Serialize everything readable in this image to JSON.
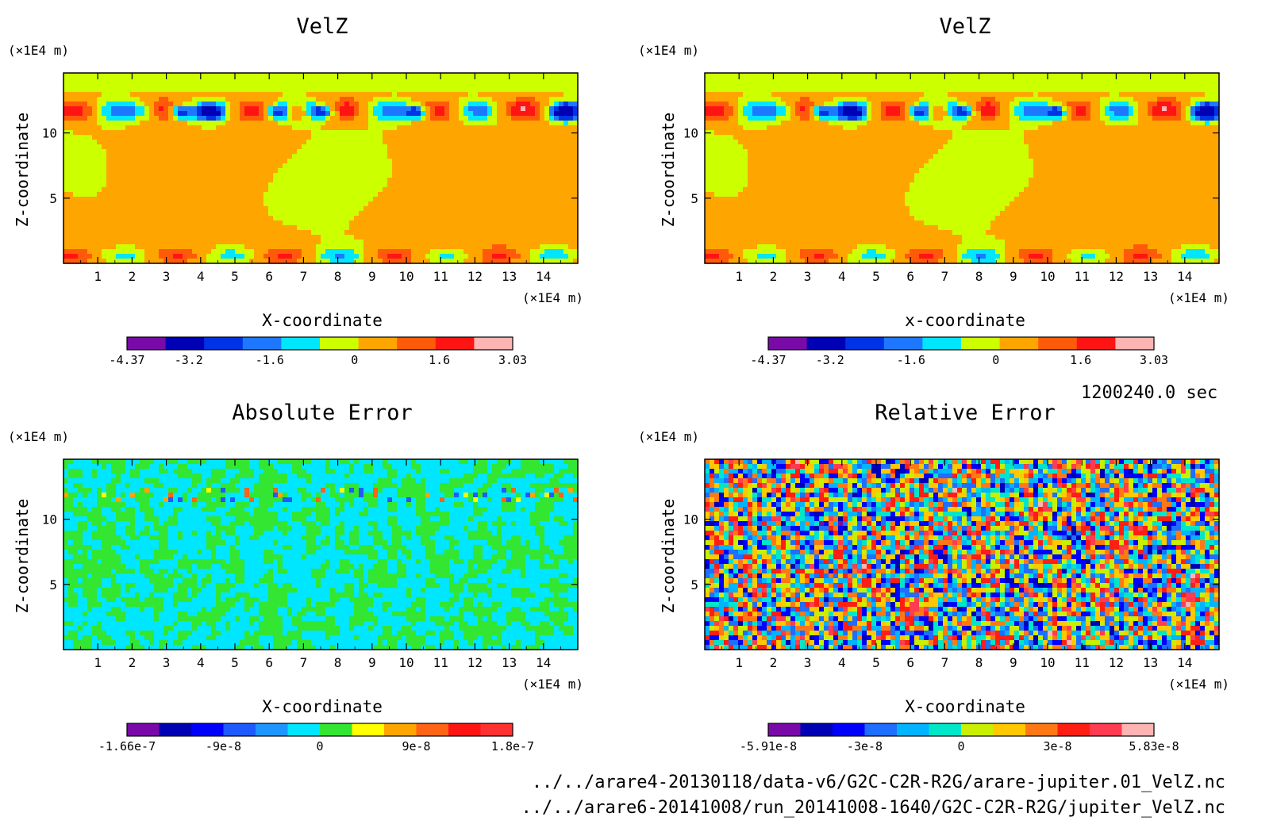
{
  "chart_data": [
    {
      "type": "heatmap",
      "title": "VelZ",
      "xlabel": "X-coordinate",
      "ylabel": "Z-coordinate",
      "x_unit": "(×1E4 m)",
      "y_unit": "(×1E4 m)",
      "xlim": [
        0,
        15
      ],
      "ylim": [
        0,
        14.6
      ],
      "x_ticks": [
        "1",
        "2",
        "3",
        "4",
        "5",
        "6",
        "7",
        "8",
        "9",
        "10",
        "11",
        "12",
        "13",
        "14"
      ],
      "y_ticks": [
        "5",
        "10"
      ],
      "colorbar": {
        "tick_labels": [
          "-4.37",
          "-3.2",
          "-1.6",
          "0",
          "1.6",
          "3.03"
        ],
        "colors": [
          "#7a0aa8",
          "#0000b4",
          "#0032e6",
          "#1e78ff",
          "#00e6ff",
          "#ccff00",
          "#ffa500",
          "#ff5a0a",
          "#ff1414",
          "#ffb4b4"
        ]
      },
      "field": "smooth"
    },
    {
      "type": "heatmap",
      "title": "VelZ",
      "xlabel": "x-coordinate",
      "ylabel": "Z-coordinate",
      "x_unit": "(×1E4 m)",
      "y_unit": "(×1E4 m)",
      "xlim": [
        0,
        15
      ],
      "ylim": [
        0,
        14.6
      ],
      "x_ticks": [
        "1",
        "2",
        "3",
        "4",
        "5",
        "6",
        "7",
        "8",
        "9",
        "10",
        "11",
        "12",
        "13",
        "14"
      ],
      "y_ticks": [
        "5",
        "10"
      ],
      "colorbar": {
        "tick_labels": [
          "-4.37",
          "-3.2",
          "-1.6",
          "0",
          "1.6",
          "3.03"
        ],
        "colors": [
          "#7a0aa8",
          "#0000b4",
          "#0032e6",
          "#1e78ff",
          "#00e6ff",
          "#ccff00",
          "#ffa500",
          "#ff5a0a",
          "#ff1414",
          "#ffb4b4"
        ]
      },
      "field": "smooth"
    },
    {
      "type": "heatmap",
      "title": "Absolute Error",
      "xlabel": "X-coordinate",
      "ylabel": "Z-coordinate",
      "x_unit": "(×1E4 m)",
      "y_unit": "(×1E4 m)",
      "xlim": [
        0,
        15
      ],
      "ylim": [
        0,
        14.6
      ],
      "x_ticks": [
        "1",
        "2",
        "3",
        "4",
        "5",
        "6",
        "7",
        "8",
        "9",
        "10",
        "11",
        "12",
        "13",
        "14"
      ],
      "y_ticks": [
        "5",
        "10"
      ],
      "colorbar": {
        "tick_labels": [
          "-1.66e-7",
          "-9e-8",
          "0",
          "9e-8",
          "1.8e-7"
        ],
        "colors": [
          "#7a0aa8",
          "#0000b4",
          "#0000ff",
          "#1e5aff",
          "#1e96ff",
          "#00e6ff",
          "#32e632",
          "#ffff00",
          "#ffa500",
          "#ff6414",
          "#ff1414",
          "#ff3232"
        ]
      },
      "field": "abs"
    },
    {
      "type": "heatmap",
      "title": "Relative Error",
      "xlabel": "X-coordinate",
      "ylabel": "Z-coordinate",
      "x_unit": "(×1E4 m)",
      "y_unit": "(×1E4 m)",
      "xlim": [
        0,
        15
      ],
      "ylim": [
        0,
        14.6
      ],
      "x_ticks": [
        "1",
        "2",
        "3",
        "4",
        "5",
        "6",
        "7",
        "8",
        "9",
        "10",
        "11",
        "12",
        "13",
        "14"
      ],
      "y_ticks": [
        "5",
        "10"
      ],
      "colorbar": {
        "tick_labels": [
          "-5.91e-8",
          "-3e-8",
          "0",
          "3e-8",
          "5.83e-8"
        ],
        "colors": [
          "#7a0aa8",
          "#0000b4",
          "#0000ff",
          "#1e6eff",
          "#00b4ff",
          "#00e6c8",
          "#c8f000",
          "#ffc800",
          "#ff7814",
          "#ff1e14",
          "#ff3c50",
          "#ffb4b4"
        ]
      },
      "field": "rel"
    }
  ],
  "time_label": "1200240.0 sec",
  "paths": [
    "../../arare4-20130118/data-v6/G2C-C2R-R2G/arare-jupiter.01_VelZ.nc",
    "../../arare6-20141008/run_20141008-1640/G2C-C2R-R2G/jupiter_VelZ.nc"
  ]
}
